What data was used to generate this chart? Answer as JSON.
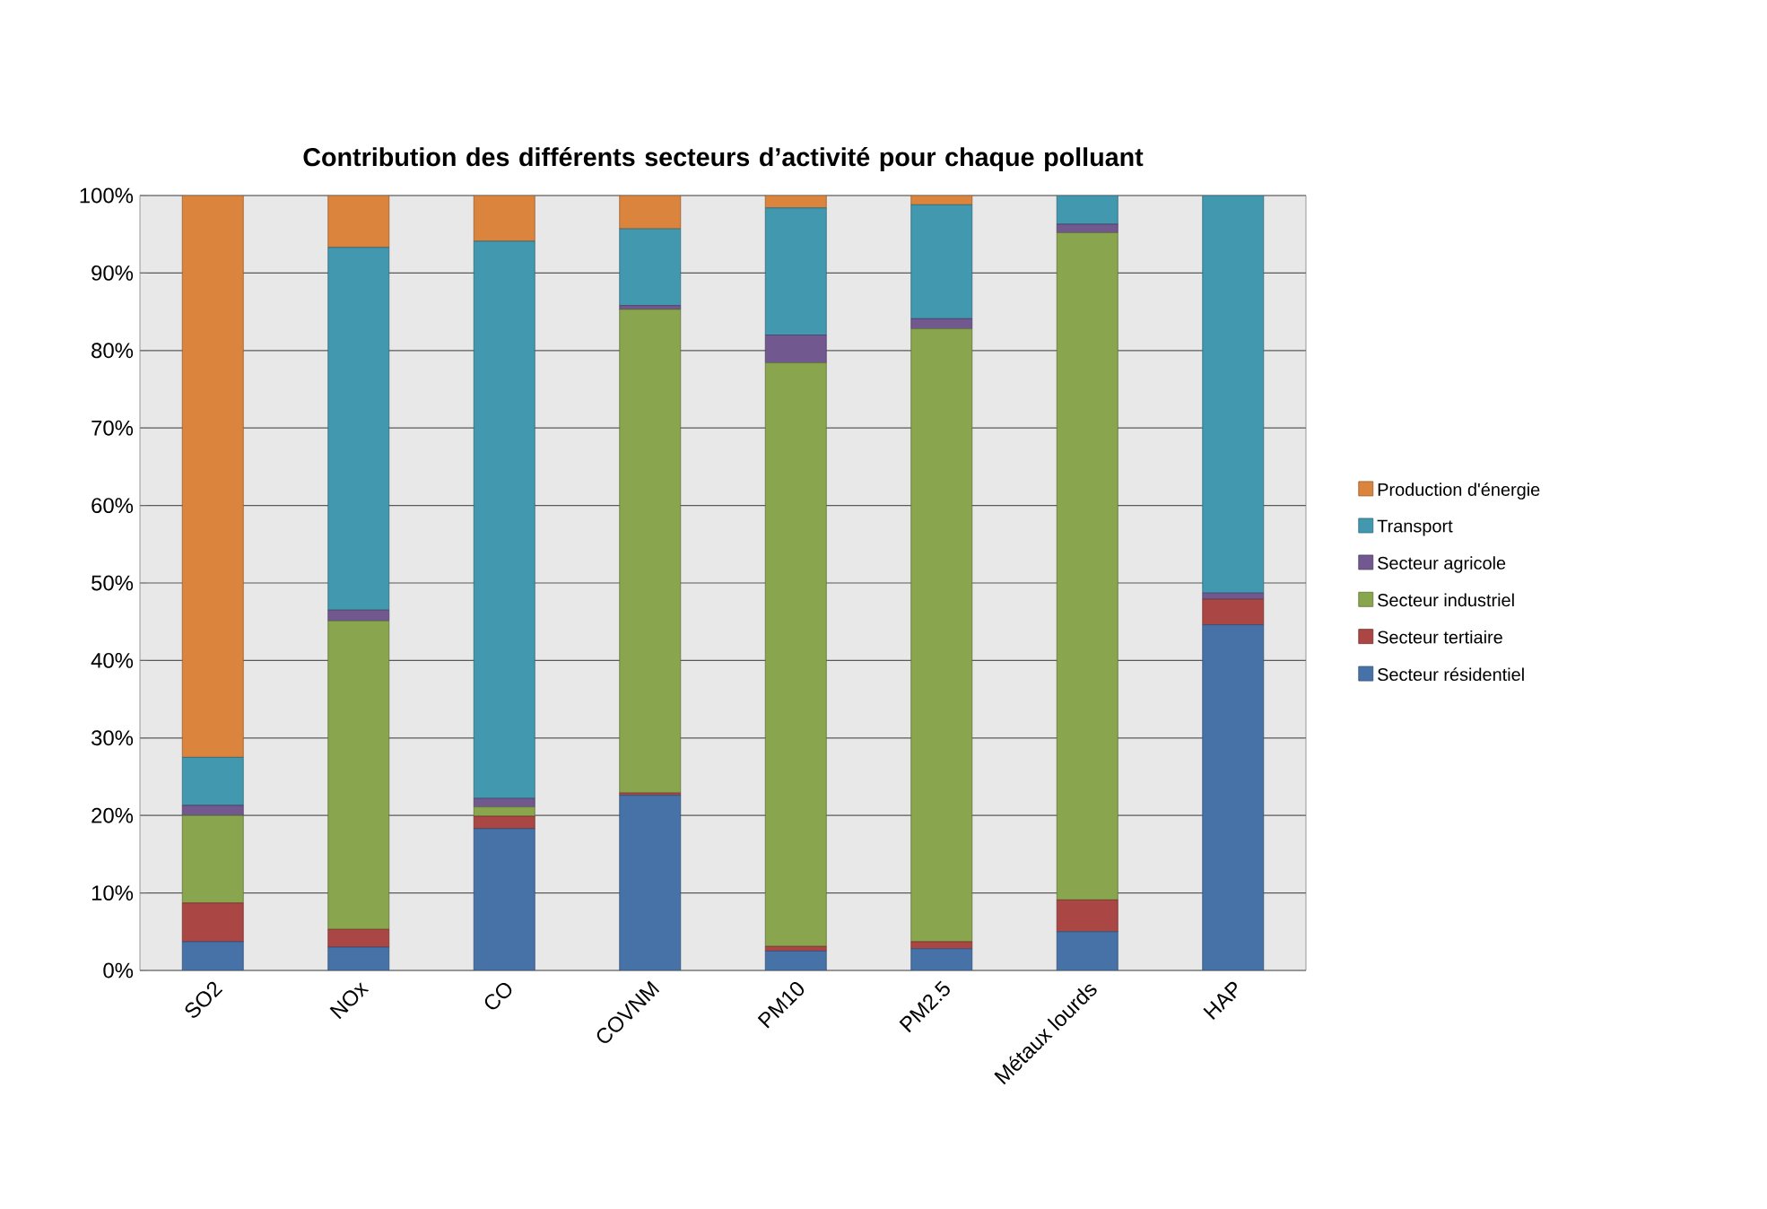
{
  "chart_data": {
    "type": "bar",
    "stacked": true,
    "title": "Contribution des différents secteurs d’activité pour chaque polluant",
    "categories": [
      "SO2",
      "NOx",
      "CO",
      "COVNM",
      "PM10",
      "PM2.5",
      "Métaux lourds",
      "HAP"
    ],
    "series": [
      {
        "name": "Secteur résidentiel",
        "color": "#4672a8",
        "values": [
          3.7,
          3.0,
          18.3,
          22.6,
          2.5,
          2.8,
          5.0,
          44.6
        ]
      },
      {
        "name": "Secteur tertiaire",
        "color": "#aa4643",
        "values": [
          5.0,
          2.3,
          1.6,
          0.3,
          0.6,
          0.9,
          4.1,
          3.3
        ]
      },
      {
        "name": "Secteur industriel",
        "color": "#89a54e",
        "values": [
          11.3,
          39.8,
          1.2,
          62.4,
          75.3,
          79.1,
          86.1,
          0
        ]
      },
      {
        "name": "Secteur agricole",
        "color": "#71588f",
        "values": [
          1.3,
          1.4,
          1.1,
          0.5,
          3.6,
          1.3,
          1.1,
          0.8
        ]
      },
      {
        "name": "Transport",
        "color": "#4198af",
        "values": [
          6.2,
          46.8,
          71.9,
          9.9,
          16.4,
          14.7,
          3.7,
          51.3
        ]
      },
      {
        "name": "Production d'énergie",
        "color": "#db843d",
        "values": [
          72.5,
          6.7,
          5.9,
          4.3,
          1.6,
          1.2,
          0,
          0
        ]
      }
    ],
    "ylim": [
      0,
      100
    ],
    "yticks": [
      {
        "value": 0,
        "label": "0%"
      },
      {
        "value": 10,
        "label": "10%"
      },
      {
        "value": 20,
        "label": "20%"
      },
      {
        "value": 30,
        "label": "30%"
      },
      {
        "value": 40,
        "label": "40%"
      },
      {
        "value": 50,
        "label": "50%"
      },
      {
        "value": 60,
        "label": "60%"
      },
      {
        "value": 70,
        "label": "70%"
      },
      {
        "value": 80,
        "label": "80%"
      },
      {
        "value": 90,
        "label": "90%"
      },
      {
        "value": 100,
        "label": "100%"
      }
    ],
    "grid": "y",
    "legend": "right"
  }
}
